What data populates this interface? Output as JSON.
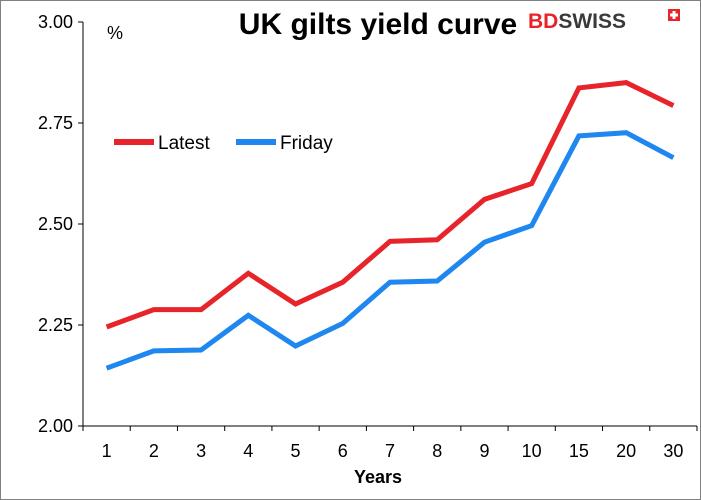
{
  "chart_data": {
    "type": "line",
    "title": "UK gilts yield curve",
    "ylabel": "%",
    "xlabel": "Years",
    "categories": [
      "1",
      "2",
      "3",
      "4",
      "5",
      "6",
      "7",
      "8",
      "9",
      "10",
      "15",
      "20",
      "30"
    ],
    "ylim": [
      2.0,
      3.0
    ],
    "yticks": [
      "2.00",
      "2.25",
      "2.50",
      "2.75",
      "3.00"
    ],
    "legend_position": "upper-left",
    "grid": false,
    "series": [
      {
        "name": "Latest",
        "color": "#e8242b",
        "values": [
          2.245,
          2.288,
          2.288,
          2.378,
          2.302,
          2.356,
          2.457,
          2.461,
          2.561,
          2.6,
          2.837,
          2.85,
          2.793
        ]
      },
      {
        "name": "Friday",
        "color": "#1e87f0",
        "values": [
          2.143,
          2.186,
          2.188,
          2.274,
          2.198,
          2.254,
          2.356,
          2.359,
          2.455,
          2.496,
          2.718,
          2.726,
          2.664
        ]
      }
    ]
  },
  "logo": {
    "text_bd": "BD",
    "text_swiss": "SWISS",
    "color_bd": "#e8242b",
    "color_swiss": "#3a3a3a",
    "icon": "swiss-cross-icon"
  }
}
